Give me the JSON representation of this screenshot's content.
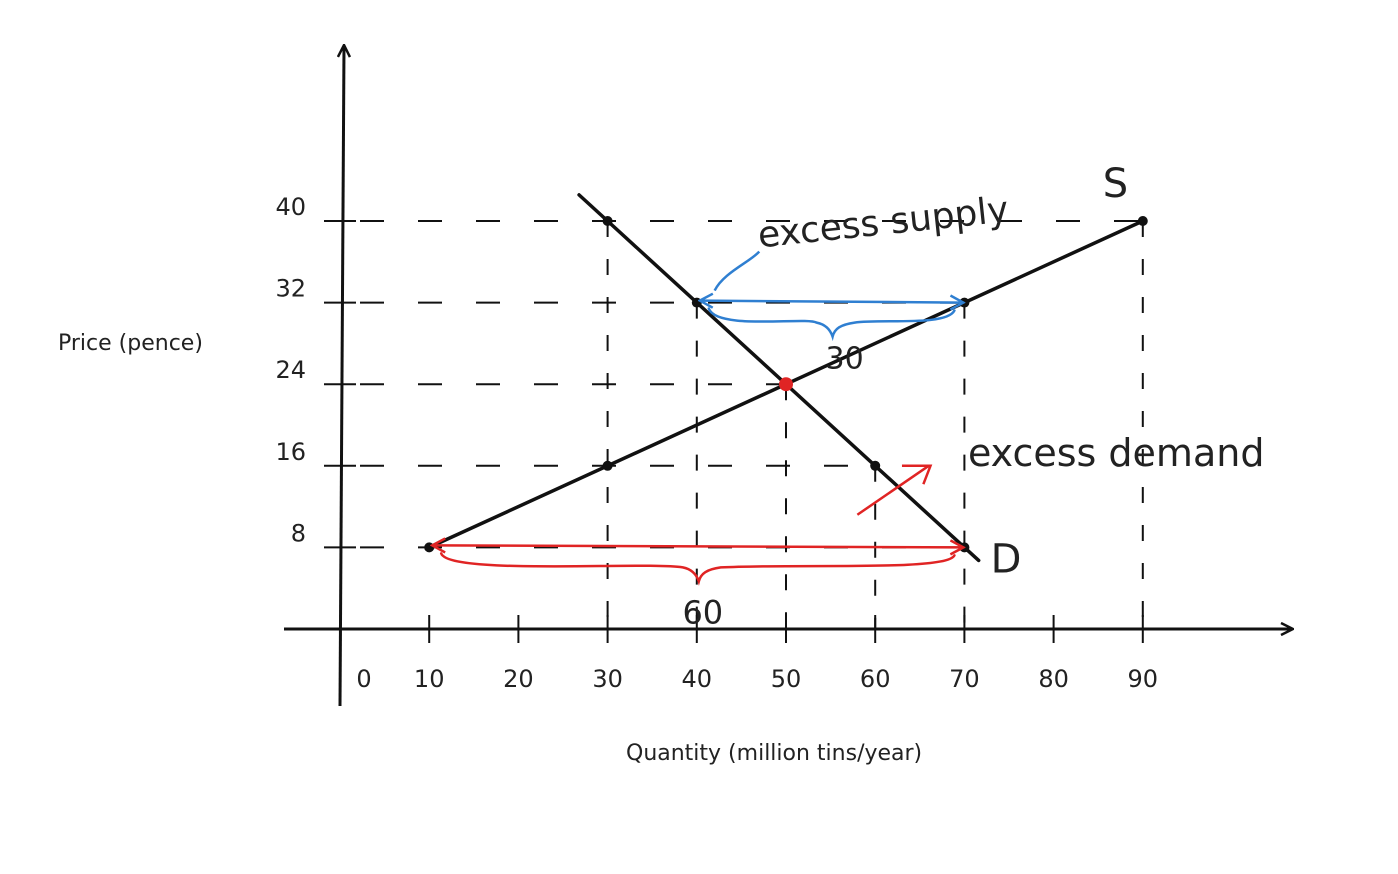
{
  "chart_data": {
    "type": "line",
    "title": "",
    "xlabel": "Quantity (million tins/year)",
    "ylabel": "Price (pence)",
    "x_ticks": [
      "0",
      "10",
      "20",
      "30",
      "40",
      "50",
      "60",
      "70",
      "80",
      "90"
    ],
    "y_ticks": [
      "8",
      "16",
      "24",
      "32",
      "40"
    ],
    "xlim": [
      0,
      105
    ],
    "ylim": [
      0,
      48
    ],
    "grid": false,
    "series": [
      {
        "name": "S",
        "x": [
          10,
          90
        ],
        "y": [
          8,
          40
        ],
        "color": "#111111"
      },
      {
        "name": "D",
        "x": [
          30,
          70
        ],
        "y": [
          40,
          8
        ],
        "color": "#111111"
      }
    ],
    "equilibrium": {
      "x": 50,
      "y": 24,
      "color": "#e02424"
    },
    "annotations": [
      {
        "text": "excess supply",
        "value": "30",
        "price": 32,
        "from_x": 40,
        "to_x": 70,
        "color": "#2f7fd1"
      },
      {
        "text": "excess demand",
        "value": "60",
        "price": 8,
        "from_x": 10,
        "to_x": 70,
        "color": "#e02424"
      }
    ]
  }
}
